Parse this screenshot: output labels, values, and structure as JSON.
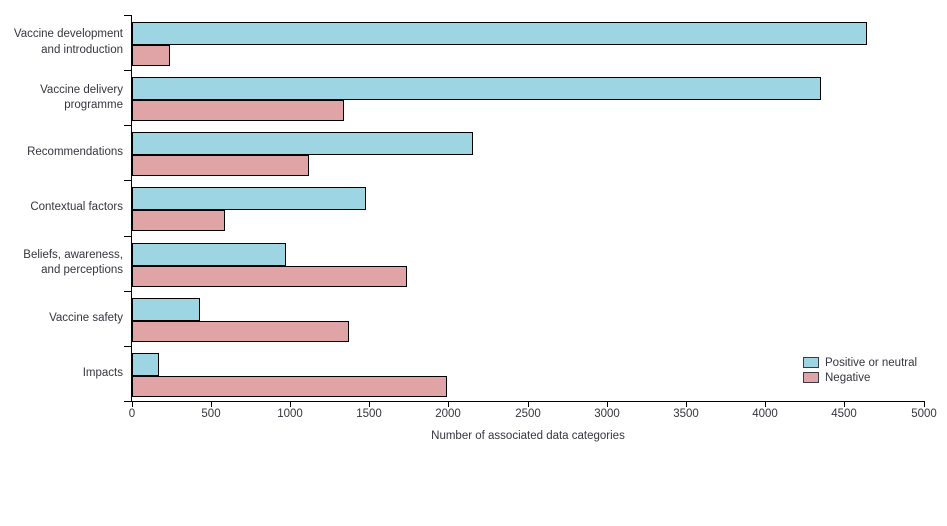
{
  "chart_data": {
    "type": "bar",
    "orientation": "horizontal",
    "title": "",
    "xlabel": "Number of associated data categories",
    "ylabel": "",
    "xlim": [
      0,
      5000
    ],
    "xticks": [
      0,
      500,
      1000,
      1500,
      2000,
      2500,
      3000,
      3500,
      4000,
      4500,
      5000
    ],
    "grid": false,
    "legend_position": "bottom-right",
    "categories": [
      {
        "lines": [
          "Vaccine development",
          "and introduction"
        ]
      },
      {
        "lines": [
          "Vaccine delivery",
          "programme"
        ]
      },
      {
        "lines": [
          "Recommendations"
        ]
      },
      {
        "lines": [
          "Contextual factors"
        ]
      },
      {
        "lines": [
          "Beliefs, awareness,",
          "and perceptions"
        ]
      },
      {
        "lines": [
          "Vaccine safety"
        ]
      },
      {
        "lines": [
          "Impacts"
        ]
      }
    ],
    "series": [
      {
        "name": "Positive or neutral",
        "color": "#9ed5e2",
        "values": [
          4640,
          4350,
          2150,
          1480,
          975,
          430,
          170
        ]
      },
      {
        "name": "Negative",
        "color": "#e0a4a6",
        "values": [
          240,
          1340,
          1120,
          585,
          1735,
          1370,
          1990
        ]
      }
    ]
  },
  "colors": {
    "bar_border": "#000000",
    "axis": "#000000",
    "text": "#35353f"
  }
}
